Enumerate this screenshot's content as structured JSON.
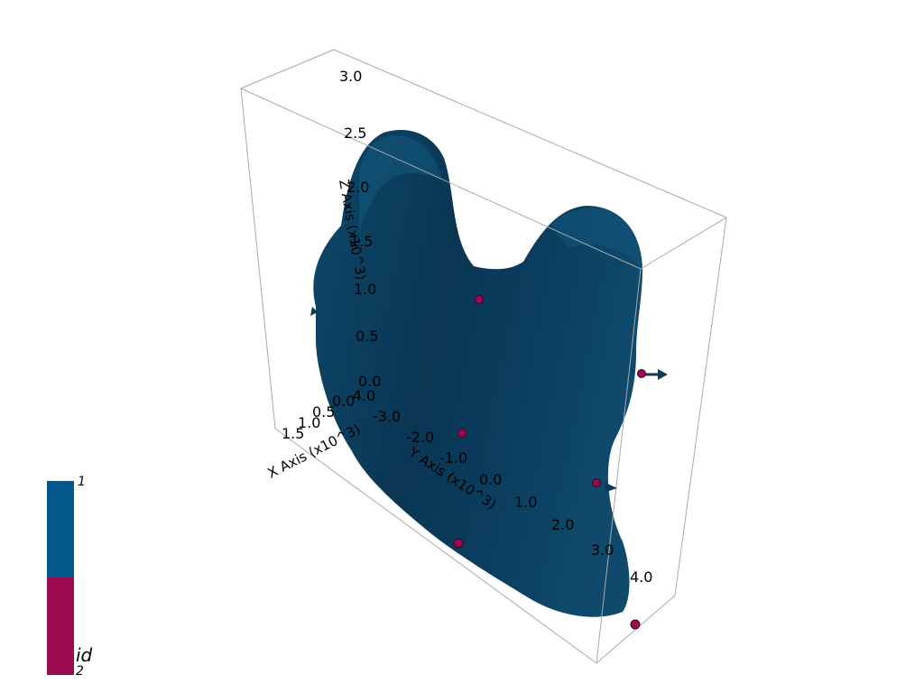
{
  "scene": {
    "background": "#ffffff",
    "surface_color": "#0f4a6c",
    "point_color": "#9b0a4e",
    "arrow_color": "#0f3a56",
    "box_color": "#a9a9a9"
  },
  "axes": {
    "x": {
      "title": "X Axis (x10^3)",
      "ticks": [
        "1.5",
        "1.0",
        "0.5",
        "0.0"
      ]
    },
    "y": {
      "title": "Y Axis (x10^3)",
      "ticks": [
        "-4.0",
        "-3.0",
        "-2.0",
        "-1.0",
        "0.0",
        "1.0",
        "2.0",
        "3.0",
        "4.0"
      ]
    },
    "z": {
      "title": "Z Axis (x10^3)",
      "ticks": [
        "0.0",
        "0.5",
        "1.0",
        "1.5",
        "2.0",
        "2.5",
        "3.0"
      ]
    }
  },
  "scalar_bar": {
    "title": "id",
    "top_label": "1",
    "bottom_label": "2",
    "colors": [
      "#03578a",
      "#9b0a4e"
    ]
  }
}
